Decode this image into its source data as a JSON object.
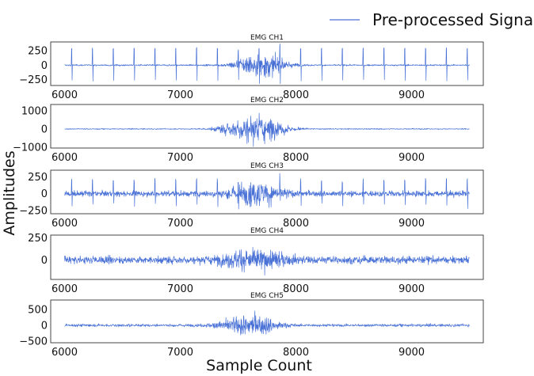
{
  "chart_data": {
    "type": "line",
    "legend": {
      "label": "Pre-processed Signal",
      "position": "top-right"
    },
    "xlabel": "Sample Count",
    "ylabel": "Amplitudes",
    "series_color": "#4a72d6",
    "xlim": [
      5880,
      9620
    ],
    "grid": false,
    "x_range": [
      6000,
      9500
    ],
    "panels": [
      {
        "title": "EMG CH1",
        "ylim": [
          -350,
          400
        ],
        "yticks": [
          -250,
          0,
          250
        ],
        "ytick_labels": [
          "−250",
          "0",
          "250"
        ],
        "xticks": [
          6000,
          7000,
          8000,
          9000
        ],
        "xtick_labels": [
          "6000",
          "7000",
          "8000",
          "9000"
        ],
        "baseline_noise": 12,
        "bursts": [
          {
            "center": 7700,
            "width": 220,
            "amplitude": 200
          }
        ],
        "spikes": {
          "period": 180,
          "start": 6060,
          "amplitude": 290
        }
      },
      {
        "title": "EMG CH2",
        "ylim": [
          -1050,
          1350
        ],
        "yticks": [
          -1000,
          0,
          1000
        ],
        "ytick_labels": [
          "−1000",
          "0",
          "1000"
        ],
        "xticks": [
          6000,
          7000,
          8000,
          9000
        ],
        "xtick_labels": [
          "6000",
          "7000",
          "8000",
          "9000"
        ],
        "baseline_noise": 25,
        "bursts": [
          {
            "center": 7650,
            "width": 260,
            "amplitude": 750
          }
        ],
        "spikes": null
      },
      {
        "title": "EMG CH3",
        "ylim": [
          -300,
          350
        ],
        "yticks": [
          -250,
          0,
          250
        ],
        "ytick_labels": [
          "−250",
          "0",
          "250"
        ],
        "xticks": [
          6000,
          7000,
          8000,
          9000
        ],
        "xtick_labels": [
          "6000",
          "7000",
          "8000",
          "9000"
        ],
        "baseline_noise": 40,
        "bursts": [
          {
            "center": 7650,
            "width": 260,
            "amplitude": 170
          }
        ],
        "spikes": {
          "period": 180,
          "start": 6060,
          "amplitude": 200
        }
      },
      {
        "title": "EMG CH4",
        "ylim": [
          -220,
          280
        ],
        "yticks": [
          0,
          250
        ],
        "ytick_labels": [
          "0",
          "250"
        ],
        "xticks": [
          6000,
          7000,
          8000,
          9000
        ],
        "xtick_labels": [
          "6000",
          "7000",
          "8000",
          "9000"
        ],
        "baseline_noise": 40,
        "bursts": [
          {
            "center": 7650,
            "width": 300,
            "amplitude": 120
          }
        ],
        "spikes": null
      },
      {
        "title": "EMG CH5",
        "ylim": [
          -550,
          800
        ],
        "yticks": [
          -500,
          0,
          500
        ],
        "ytick_labels": [
          "−500",
          "0",
          "500"
        ],
        "xticks": [
          6000,
          7000,
          8000,
          9000
        ],
        "xtick_labels": [
          "6000",
          "7000",
          "8000",
          "9000"
        ],
        "baseline_noise": 40,
        "bursts": [
          {
            "center": 7600,
            "width": 260,
            "amplitude": 330
          }
        ],
        "spikes": null
      }
    ]
  }
}
